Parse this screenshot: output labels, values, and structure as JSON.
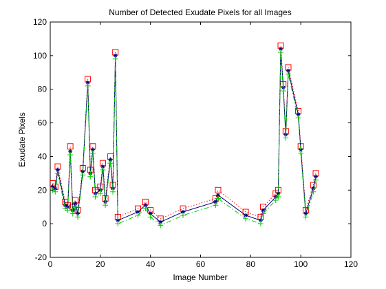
{
  "chart_data": {
    "type": "line",
    "title": "Number of Detected Exudate Pixels for all Images",
    "xlabel": "Image Number",
    "ylabel": "Exudate Pixels",
    "xlim": [
      0,
      120
    ],
    "ylim": [
      -20,
      120
    ],
    "xticks": [
      0,
      20,
      40,
      60,
      80,
      100,
      120
    ],
    "yticks": [
      -20,
      0,
      20,
      40,
      60,
      80,
      100,
      120
    ],
    "xtick_labels": [
      "0",
      "20",
      "40",
      "60",
      "80",
      "100",
      "120"
    ],
    "ytick_labels": [
      "-20",
      "0",
      "20",
      "40",
      "60",
      "80",
      "100",
      "120"
    ],
    "grid": false,
    "legend": null,
    "x": [
      1,
      2,
      3,
      6,
      7,
      8,
      9,
      10,
      11,
      13,
      15,
      16,
      17,
      18,
      20,
      21,
      22,
      24,
      25,
      26,
      27,
      35,
      38,
      40,
      44,
      53,
      66,
      67,
      78,
      84,
      85,
      90,
      91,
      92,
      93,
      94,
      95,
      99,
      100,
      102,
      105,
      106
    ],
    "series": [
      {
        "color": "#ff0000",
        "linestyle": "dotted",
        "marker": "square",
        "values": [
          24,
          22,
          34,
          13,
          11,
          46,
          10,
          14,
          8,
          33,
          86,
          32,
          46,
          20,
          22,
          36,
          15,
          40,
          23,
          102,
          4,
          9,
          13,
          8,
          3,
          9,
          15,
          20,
          7,
          4,
          10,
          18,
          20,
          106,
          83,
          55,
          93,
          67,
          46,
          8,
          23,
          30
        ]
      },
      {
        "color": "#000080",
        "linestyle": "solid",
        "marker": "star",
        "values": [
          22,
          21,
          32,
          11,
          10,
          43,
          8,
          12,
          6,
          31,
          84,
          30,
          44,
          18,
          20,
          34,
          13,
          38,
          21,
          100,
          2,
          7,
          11,
          6,
          1,
          7,
          13,
          17,
          5,
          2,
          8,
          16,
          18,
          104,
          81,
          53,
          91,
          65,
          44,
          6,
          21,
          28
        ]
      },
      {
        "color": "#00cc00",
        "linestyle": "dashdot",
        "marker": "plus",
        "values": [
          20,
          19,
          30,
          9,
          8,
          41,
          6,
          10,
          4,
          29,
          82,
          28,
          42,
          16,
          18,
          32,
          11,
          36,
          19,
          98,
          0,
          5,
          9,
          4,
          -1,
          5,
          11,
          15,
          3,
          0,
          6,
          14,
          16,
          102,
          79,
          51,
          89,
          63,
          42,
          4,
          19,
          26
        ]
      }
    ]
  }
}
